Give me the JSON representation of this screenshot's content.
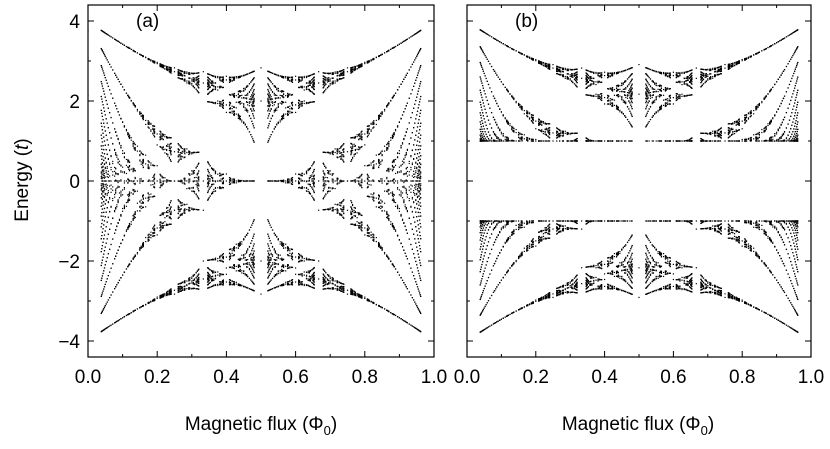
{
  "chart_data": [
    {
      "type": "scatter",
      "panel_label": "(a)",
      "xlabel": "Magnetic flux",
      "xunit_symbol": "Φ",
      "xunit_subscript": "0",
      "ylabel": "Energy",
      "yunit": "t",
      "xlim": [
        0.0,
        1.0
      ],
      "ylim": [
        -4.4,
        4.4
      ],
      "xticks": [
        0.0,
        0.2,
        0.4,
        0.6,
        0.8,
        1.0
      ],
      "xtick_labels": [
        "0.0",
        "0.2",
        "0.4",
        "0.6",
        "0.8",
        "1.0"
      ],
      "yticks": [
        4,
        2,
        0,
        -2,
        -4
      ],
      "ytick_labels": [
        "4",
        "2",
        "0",
        "−2",
        "−4"
      ],
      "grid": false,
      "spectrum": {
        "description_values": "energy spectrum (Hofstadter butterfly) of a lattice vs magnetic flux",
        "band_edge_at_zero_flux": [
          -4,
          4
        ],
        "band_edge_at_half_flux": [
          -2.8,
          2.8
        ],
        "gap": null
      }
    },
    {
      "type": "scatter",
      "panel_label": "(b)",
      "xlabel": "Magnetic flux",
      "xunit_symbol": "Φ",
      "xunit_subscript": "0",
      "xlim": [
        0.0,
        1.0
      ],
      "ylim": [
        -4.4,
        4.4
      ],
      "xticks": [
        0.0,
        0.2,
        0.4,
        0.6,
        0.8,
        1.0
      ],
      "xtick_labels": [
        "0.0",
        "0.2",
        "0.4",
        "0.6",
        "0.8",
        "1.0"
      ],
      "yticks": [
        4,
        2,
        0,
        -2,
        -4
      ],
      "grid": false,
      "spectrum": {
        "band_edge_at_zero_flux": [
          -4,
          4
        ],
        "band_edge_at_half_flux": [
          -2.8,
          2.8
        ],
        "gap": [
          -1,
          1
        ]
      }
    }
  ]
}
